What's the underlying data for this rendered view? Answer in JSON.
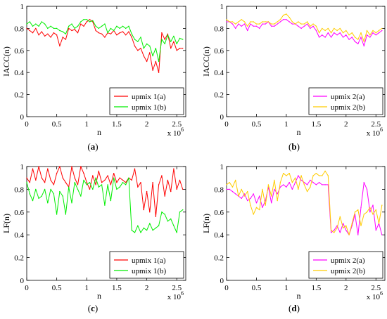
{
  "chart_data": [
    {
      "type": "line",
      "panel_label": "(a)",
      "xlabel": "n",
      "ylabel": "IACC(n)",
      "x_multiplier": "x 10",
      "x_exponent": "6",
      "xlim": [
        0,
        2.65
      ],
      "ylim": [
        0,
        1
      ],
      "xticks": [
        "0",
        "0.5",
        "1",
        "1.5",
        "2",
        "2.5"
      ],
      "yticks": [
        "0",
        "0.2",
        "0.4",
        "0.6",
        "0.8",
        "1"
      ],
      "legend": "bottom-right",
      "series": [
        {
          "name": "upmix 1(a)",
          "color": "#ff0000",
          "x": [
            0.0,
            0.05,
            0.1,
            0.15,
            0.2,
            0.25,
            0.3,
            0.35,
            0.4,
            0.45,
            0.5,
            0.55,
            0.6,
            0.65,
            0.7,
            0.75,
            0.8,
            0.85,
            0.9,
            0.95,
            1.0,
            1.05,
            1.1,
            1.15,
            1.2,
            1.25,
            1.3,
            1.35,
            1.4,
            1.45,
            1.5,
            1.55,
            1.6,
            1.65,
            1.7,
            1.75,
            1.8,
            1.85,
            1.9,
            1.95,
            2.0,
            2.05,
            2.1,
            2.15,
            2.2,
            2.25,
            2.3,
            2.35,
            2.4,
            2.45,
            2.5,
            2.55,
            2.6
          ],
          "y": [
            0.8,
            0.78,
            0.76,
            0.8,
            0.74,
            0.77,
            0.73,
            0.75,
            0.72,
            0.76,
            0.74,
            0.64,
            0.72,
            0.7,
            0.8,
            0.78,
            0.79,
            0.76,
            0.84,
            0.82,
            0.86,
            0.88,
            0.86,
            0.78,
            0.76,
            0.75,
            0.72,
            0.76,
            0.75,
            0.78,
            0.74,
            0.76,
            0.77,
            0.74,
            0.77,
            0.72,
            0.64,
            0.6,
            0.62,
            0.55,
            0.5,
            0.58,
            0.42,
            0.5,
            0.4,
            0.76,
            0.7,
            0.75,
            0.62,
            0.68,
            0.6,
            0.62,
            0.62
          ]
        },
        {
          "name": "upmix 1(b)",
          "color": "#00ee00",
          "x": [
            0.0,
            0.05,
            0.1,
            0.15,
            0.2,
            0.25,
            0.3,
            0.35,
            0.4,
            0.45,
            0.5,
            0.55,
            0.6,
            0.65,
            0.7,
            0.75,
            0.8,
            0.85,
            0.9,
            0.95,
            1.0,
            1.05,
            1.1,
            1.15,
            1.2,
            1.25,
            1.3,
            1.35,
            1.4,
            1.45,
            1.5,
            1.55,
            1.6,
            1.65,
            1.7,
            1.75,
            1.8,
            1.85,
            1.9,
            1.95,
            2.0,
            2.05,
            2.1,
            2.15,
            2.2,
            2.25,
            2.3,
            2.35,
            2.4,
            2.45,
            2.5,
            2.55,
            2.6
          ],
          "y": [
            0.84,
            0.86,
            0.82,
            0.84,
            0.82,
            0.86,
            0.84,
            0.8,
            0.82,
            0.8,
            0.8,
            0.78,
            0.77,
            0.75,
            0.82,
            0.84,
            0.8,
            0.82,
            0.86,
            0.88,
            0.88,
            0.86,
            0.87,
            0.82,
            0.8,
            0.82,
            0.84,
            0.76,
            0.8,
            0.78,
            0.82,
            0.8,
            0.82,
            0.8,
            0.82,
            0.75,
            0.7,
            0.68,
            0.72,
            0.62,
            0.66,
            0.64,
            0.55,
            0.62,
            0.5,
            0.7,
            0.66,
            0.74,
            0.68,
            0.73,
            0.66,
            0.71,
            0.7
          ]
        }
      ]
    },
    {
      "type": "line",
      "panel_label": "(b)",
      "xlabel": "n",
      "ylabel": "IACC(n)",
      "x_multiplier": "x 10",
      "x_exponent": "6",
      "xlim": [
        0,
        2.65
      ],
      "ylim": [
        0,
        1
      ],
      "xticks": [
        "0",
        "0.5",
        "1",
        "1.5",
        "2",
        "2.5"
      ],
      "yticks": [
        "0",
        "0.2",
        "0.4",
        "0.6",
        "0.8",
        "1"
      ],
      "legend": "bottom-right",
      "series": [
        {
          "name": "upmix 2(a)",
          "color": "#ff00ff",
          "x": [
            0.0,
            0.05,
            0.1,
            0.15,
            0.2,
            0.25,
            0.3,
            0.35,
            0.4,
            0.45,
            0.5,
            0.55,
            0.6,
            0.65,
            0.7,
            0.75,
            0.8,
            0.85,
            0.9,
            0.95,
            1.0,
            1.05,
            1.1,
            1.15,
            1.2,
            1.25,
            1.3,
            1.35,
            1.4,
            1.45,
            1.5,
            1.55,
            1.6,
            1.65,
            1.7,
            1.75,
            1.8,
            1.85,
            1.9,
            1.95,
            2.0,
            2.05,
            2.1,
            2.15,
            2.2,
            2.25,
            2.3,
            2.35,
            2.4,
            2.45,
            2.5,
            2.55,
            2.6
          ],
          "y": [
            0.86,
            0.86,
            0.84,
            0.8,
            0.84,
            0.82,
            0.84,
            0.78,
            0.84,
            0.82,
            0.82,
            0.8,
            0.84,
            0.84,
            0.86,
            0.82,
            0.82,
            0.84,
            0.86,
            0.88,
            0.88,
            0.86,
            0.84,
            0.84,
            0.82,
            0.8,
            0.82,
            0.84,
            0.8,
            0.82,
            0.78,
            0.72,
            0.74,
            0.72,
            0.76,
            0.72,
            0.76,
            0.74,
            0.76,
            0.72,
            0.74,
            0.7,
            0.72,
            0.68,
            0.66,
            0.72,
            0.64,
            0.74,
            0.72,
            0.76,
            0.74,
            0.76,
            0.78
          ]
        },
        {
          "name": "upmix 2(b)",
          "color": "#ffcc00",
          "x": [
            0.0,
            0.05,
            0.1,
            0.15,
            0.2,
            0.25,
            0.3,
            0.35,
            0.4,
            0.45,
            0.5,
            0.55,
            0.6,
            0.65,
            0.7,
            0.75,
            0.8,
            0.85,
            0.9,
            0.95,
            1.0,
            1.05,
            1.1,
            1.15,
            1.2,
            1.25,
            1.3,
            1.35,
            1.4,
            1.45,
            1.5,
            1.55,
            1.6,
            1.65,
            1.7,
            1.75,
            1.8,
            1.85,
            1.9,
            1.95,
            2.0,
            2.05,
            2.1,
            2.15,
            2.2,
            2.25,
            2.3,
            2.35,
            2.4,
            2.45,
            2.5,
            2.55,
            2.6
          ],
          "y": [
            0.88,
            0.86,
            0.86,
            0.84,
            0.86,
            0.88,
            0.86,
            0.82,
            0.86,
            0.86,
            0.84,
            0.84,
            0.86,
            0.86,
            0.86,
            0.84,
            0.84,
            0.86,
            0.88,
            0.92,
            0.93,
            0.9,
            0.86,
            0.84,
            0.86,
            0.84,
            0.84,
            0.86,
            0.82,
            0.84,
            0.82,
            0.76,
            0.8,
            0.78,
            0.8,
            0.76,
            0.8,
            0.78,
            0.8,
            0.76,
            0.78,
            0.74,
            0.76,
            0.72,
            0.7,
            0.76,
            0.68,
            0.78,
            0.74,
            0.78,
            0.76,
            0.78,
            0.8
          ]
        }
      ]
    },
    {
      "type": "line",
      "panel_label": "(c)",
      "xlabel": "n",
      "ylabel": "LF(n)",
      "x_multiplier": "x 10",
      "x_exponent": "6",
      "xlim": [
        0,
        2.65
      ],
      "ylim": [
        0,
        1
      ],
      "xticks": [
        "0",
        "0.5",
        "1",
        "1.5",
        "2",
        "2.5"
      ],
      "yticks": [
        "0",
        "0.2",
        "0.4",
        "0.6",
        "0.8",
        "1"
      ],
      "legend": "bottom-right",
      "series": [
        {
          "name": "upmix 1(a)",
          "color": "#ff0000",
          "x": [
            0.0,
            0.05,
            0.1,
            0.15,
            0.2,
            0.25,
            0.3,
            0.35,
            0.4,
            0.45,
            0.5,
            0.55,
            0.6,
            0.65,
            0.7,
            0.75,
            0.8,
            0.85,
            0.9,
            0.95,
            1.0,
            1.05,
            1.1,
            1.15,
            1.2,
            1.25,
            1.3,
            1.35,
            1.4,
            1.45,
            1.5,
            1.55,
            1.6,
            1.65,
            1.7,
            1.75,
            1.8,
            1.85,
            1.9,
            1.95,
            2.0,
            2.05,
            2.1,
            2.15,
            2.2,
            2.25,
            2.3,
            2.35,
            2.4,
            2.45,
            2.5,
            2.55,
            2.6
          ],
          "y": [
            0.9,
            0.86,
            0.98,
            0.88,
            1.0,
            0.9,
            0.86,
            0.98,
            0.88,
            0.84,
            0.94,
            1.0,
            0.9,
            0.86,
            0.82,
            1.0,
            0.9,
            0.84,
            1.0,
            0.94,
            0.86,
            0.8,
            0.92,
            0.84,
            0.96,
            0.86,
            0.88,
            0.92,
            0.84,
            0.94,
            0.86,
            0.9,
            0.88,
            0.86,
            0.9,
            0.88,
            0.98,
            0.82,
            0.86,
            0.62,
            0.78,
            0.6,
            0.86,
            0.56,
            0.84,
            0.92,
            0.74,
            0.88,
            0.78,
            0.98,
            0.8,
            0.88,
            0.8
          ]
        },
        {
          "name": "upmix 1(b)",
          "color": "#00ee00",
          "x": [
            0.0,
            0.05,
            0.1,
            0.15,
            0.2,
            0.25,
            0.3,
            0.35,
            0.4,
            0.45,
            0.5,
            0.55,
            0.6,
            0.65,
            0.7,
            0.75,
            0.8,
            0.85,
            0.9,
            0.95,
            1.0,
            1.05,
            1.1,
            1.15,
            1.2,
            1.25,
            1.3,
            1.35,
            1.4,
            1.45,
            1.5,
            1.55,
            1.6,
            1.65,
            1.7,
            1.75,
            1.8,
            1.85,
            1.9,
            1.95,
            2.0,
            2.05,
            2.1,
            2.15,
            2.2,
            2.25,
            2.3,
            2.35,
            2.4,
            2.45,
            2.5,
            2.55,
            2.6
          ],
          "y": [
            0.86,
            0.76,
            0.7,
            0.8,
            0.72,
            0.74,
            0.8,
            0.68,
            0.8,
            0.76,
            0.58,
            0.78,
            0.74,
            0.58,
            0.82,
            0.68,
            0.86,
            0.8,
            0.74,
            0.88,
            0.84,
            0.86,
            0.8,
            0.9,
            0.82,
            0.84,
            0.66,
            0.84,
            0.7,
            0.9,
            0.8,
            0.82,
            0.86,
            0.84,
            0.9,
            0.44,
            0.42,
            0.48,
            0.42,
            0.46,
            0.44,
            0.5,
            0.44,
            0.46,
            0.48,
            0.6,
            0.58,
            0.52,
            0.54,
            0.48,
            0.42,
            0.6,
            0.62
          ]
        }
      ]
    },
    {
      "type": "line",
      "panel_label": "(d)",
      "xlabel": "n",
      "ylabel": "LF(n)",
      "x_multiplier": "x 10",
      "x_exponent": "6",
      "xlim": [
        0,
        2.65
      ],
      "ylim": [
        0,
        1
      ],
      "xticks": [
        "0",
        "0.5",
        "1",
        "1.5",
        "2",
        "2.5"
      ],
      "yticks": [
        "0",
        "0.2",
        "0.4",
        "0.6",
        "0.8",
        "1"
      ],
      "legend": "bottom-right",
      "series": [
        {
          "name": "upmix 2(a)",
          "color": "#ff00ff",
          "x": [
            0.0,
            0.05,
            0.1,
            0.15,
            0.2,
            0.25,
            0.3,
            0.35,
            0.4,
            0.45,
            0.5,
            0.55,
            0.6,
            0.65,
            0.7,
            0.75,
            0.8,
            0.85,
            0.9,
            0.95,
            1.0,
            1.05,
            1.1,
            1.15,
            1.2,
            1.25,
            1.3,
            1.35,
            1.4,
            1.45,
            1.5,
            1.55,
            1.6,
            1.65,
            1.7,
            1.75,
            1.8,
            1.85,
            1.9,
            1.95,
            2.0,
            2.05,
            2.1,
            2.15,
            2.2,
            2.25,
            2.3,
            2.35,
            2.4,
            2.45,
            2.5,
            2.55,
            2.6
          ],
          "y": [
            0.8,
            0.8,
            0.78,
            0.76,
            0.74,
            0.72,
            0.76,
            0.7,
            0.72,
            0.76,
            0.68,
            0.74,
            0.64,
            0.7,
            0.82,
            0.68,
            0.8,
            0.76,
            0.82,
            0.84,
            0.82,
            0.86,
            0.8,
            0.86,
            0.92,
            0.88,
            0.86,
            0.84,
            0.88,
            0.86,
            0.84,
            0.86,
            0.84,
            0.84,
            0.84,
            0.42,
            0.44,
            0.48,
            0.42,
            0.5,
            0.44,
            0.4,
            0.48,
            0.58,
            0.4,
            0.64,
            0.86,
            0.8,
            0.6,
            0.66,
            0.44,
            0.5,
            0.4
          ]
        },
        {
          "name": "upmix 2(b)",
          "color": "#ffcc00",
          "x": [
            0.0,
            0.05,
            0.1,
            0.15,
            0.2,
            0.25,
            0.3,
            0.35,
            0.4,
            0.45,
            0.5,
            0.55,
            0.6,
            0.65,
            0.7,
            0.75,
            0.8,
            0.85,
            0.9,
            0.95,
            1.0,
            1.05,
            1.1,
            1.15,
            1.2,
            1.25,
            1.3,
            1.35,
            1.4,
            1.45,
            1.5,
            1.55,
            1.6,
            1.65,
            1.7,
            1.75,
            1.8,
            1.85,
            1.9,
            1.95,
            2.0,
            2.05,
            2.1,
            2.15,
            2.2,
            2.25,
            2.3,
            2.35,
            2.4,
            2.45,
            2.5,
            2.55,
            2.6
          ],
          "y": [
            0.84,
            0.86,
            0.82,
            0.88,
            0.74,
            0.8,
            0.74,
            0.78,
            0.66,
            0.58,
            0.64,
            0.62,
            0.8,
            0.66,
            0.84,
            0.74,
            0.88,
            0.7,
            0.86,
            0.94,
            0.92,
            0.94,
            0.86,
            0.9,
            0.8,
            0.92,
            0.84,
            0.78,
            0.82,
            0.92,
            0.94,
            0.92,
            0.92,
            0.96,
            0.92,
            0.44,
            0.42,
            0.46,
            0.56,
            0.46,
            0.48,
            0.4,
            0.5,
            0.6,
            0.62,
            0.48,
            0.58,
            0.6,
            0.64,
            0.58,
            0.62,
            0.5,
            0.66
          ]
        }
      ]
    }
  ]
}
